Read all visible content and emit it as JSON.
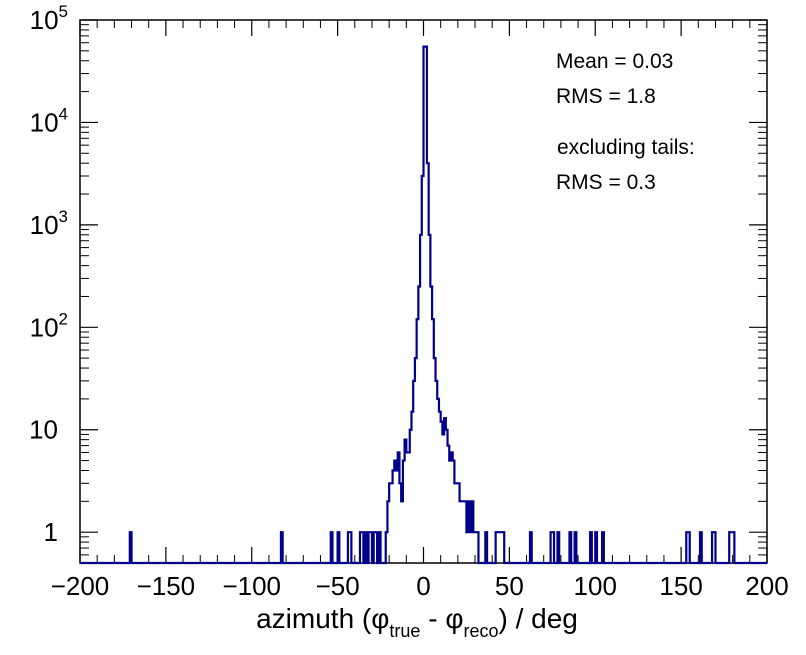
{
  "chart_data": {
    "type": "histogram",
    "scale_y": "log",
    "xlim": [
      -200,
      200
    ],
    "ylim": [
      0.5,
      100000
    ],
    "bin_width": 1,
    "line_color": "#00008b",
    "xlabel": {
      "prefix": "azimuth (",
      "phi1": "φ",
      "sub1": "true",
      "mid": " - ",
      "phi2": "φ",
      "sub2": "reco",
      "suffix": ") / deg"
    },
    "x_ticks": [
      "−200",
      "−150",
      "−100",
      "−50",
      "0",
      "50",
      "100",
      "150",
      "200"
    ],
    "x_tick_values": [
      -200,
      -150,
      -100,
      -50,
      0,
      50,
      100,
      150,
      200
    ],
    "y_ticks": [
      {
        "value": 1,
        "base": "1",
        "exp": ""
      },
      {
        "value": 10,
        "base": "10",
        "exp": ""
      },
      {
        "value": 100,
        "base": "10",
        "exp": "2"
      },
      {
        "value": 1000,
        "base": "10",
        "exp": "3"
      },
      {
        "value": 10000,
        "base": "10",
        "exp": "4"
      },
      {
        "value": 100000,
        "base": "10",
        "exp": "5"
      }
    ],
    "stats": [
      "Mean = 0.03",
      "RMS = 1.8",
      "excluding tails:",
      "RMS = 0.3"
    ],
    "bins": [
      [
        -171,
        1
      ],
      [
        -83,
        1
      ],
      [
        -54,
        1
      ],
      [
        -50,
        1
      ],
      [
        -44,
        1
      ],
      [
        -43,
        1
      ],
      [
        -37,
        1
      ],
      [
        -36,
        1
      ],
      [
        -34,
        1
      ],
      [
        -32,
        1
      ],
      [
        -31,
        1
      ],
      [
        -29,
        1
      ],
      [
        -28,
        1
      ],
      [
        -26,
        1
      ],
      [
        -22,
        1
      ],
      [
        -21,
        2
      ],
      [
        -20,
        3
      ],
      [
        -19,
        3
      ],
      [
        -18,
        4
      ],
      [
        -17,
        5
      ],
      [
        -16,
        4
      ],
      [
        -15,
        6
      ],
      [
        -14,
        3
      ],
      [
        -13,
        2
      ],
      [
        -12,
        5
      ],
      [
        -11,
        8
      ],
      [
        -10,
        6
      ],
      [
        -9,
        6
      ],
      [
        -8,
        10
      ],
      [
        -7,
        15
      ],
      [
        -6,
        30
      ],
      [
        -5,
        50
      ],
      [
        -4,
        120
      ],
      [
        -3,
        250
      ],
      [
        -2,
        800
      ],
      [
        -1,
        3000
      ],
      [
        0,
        55000
      ],
      [
        1,
        55000
      ],
      [
        2,
        4000
      ],
      [
        3,
        800
      ],
      [
        4,
        250
      ],
      [
        5,
        120
      ],
      [
        6,
        50
      ],
      [
        7,
        30
      ],
      [
        8,
        20
      ],
      [
        9,
        15
      ],
      [
        10,
        12
      ],
      [
        11,
        9
      ],
      [
        12,
        13
      ],
      [
        13,
        10
      ],
      [
        14,
        7
      ],
      [
        15,
        5
      ],
      [
        16,
        6
      ],
      [
        17,
        5
      ],
      [
        18,
        3
      ],
      [
        19,
        3
      ],
      [
        20,
        3
      ],
      [
        21,
        2
      ],
      [
        22,
        2
      ],
      [
        23,
        2
      ],
      [
        24,
        2
      ],
      [
        25,
        1
      ],
      [
        26,
        2
      ],
      [
        27,
        1
      ],
      [
        28,
        2
      ],
      [
        29,
        1
      ],
      [
        30,
        1
      ],
      [
        31,
        1
      ],
      [
        36,
        1
      ],
      [
        42,
        1
      ],
      [
        43,
        1
      ],
      [
        44,
        1
      ],
      [
        45,
        1
      ],
      [
        46,
        1
      ],
      [
        62,
        1
      ],
      [
        74,
        1
      ],
      [
        75,
        1
      ],
      [
        78,
        1
      ],
      [
        85,
        1
      ],
      [
        88,
        1
      ],
      [
        97,
        1
      ],
      [
        100,
        1
      ],
      [
        104,
        1
      ],
      [
        153,
        1
      ],
      [
        154,
        1
      ],
      [
        161,
        1
      ],
      [
        168,
        1
      ],
      [
        169,
        1
      ],
      [
        178,
        1
      ],
      [
        179,
        1
      ],
      [
        180,
        1
      ]
    ]
  }
}
